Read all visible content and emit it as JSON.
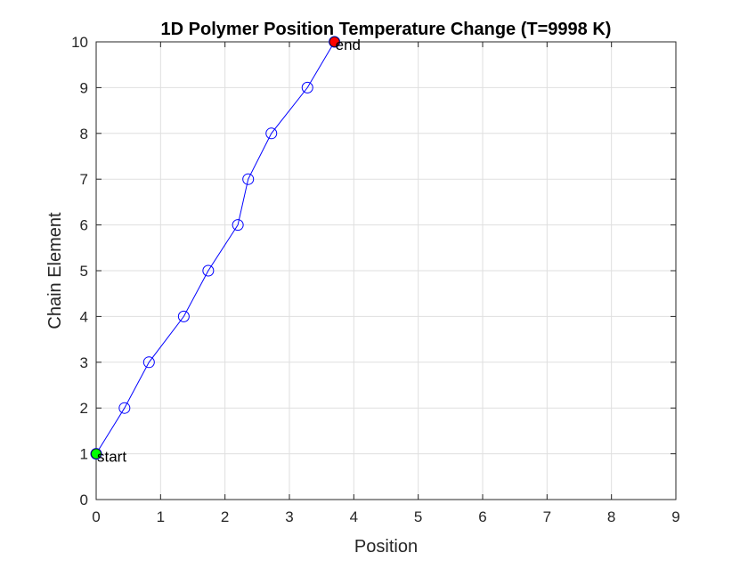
{
  "chart_data": {
    "type": "line",
    "title": "1D Polymer Position Temperature Change (T=9998 K)",
    "xlabel": "Position",
    "ylabel": "Chain Element",
    "xlim": [
      0,
      9
    ],
    "ylim": [
      0,
      10
    ],
    "xticks": [
      "0",
      "1",
      "2",
      "3",
      "4",
      "5",
      "6",
      "7",
      "8",
      "9"
    ],
    "yticks": [
      "0",
      "1",
      "2",
      "3",
      "4",
      "5",
      "6",
      "7",
      "8",
      "9",
      "10"
    ],
    "grid": true,
    "series": [
      {
        "marker": "circle-open",
        "color": "#0000ff",
        "points": [
          {
            "x": 0.0,
            "y": 1
          },
          {
            "x": 0.44,
            "y": 2
          },
          {
            "x": 0.82,
            "y": 3
          },
          {
            "x": 1.36,
            "y": 4
          },
          {
            "x": 1.74,
            "y": 5
          },
          {
            "x": 2.2,
            "y": 6
          },
          {
            "x": 2.36,
            "y": 7
          },
          {
            "x": 2.72,
            "y": 8
          },
          {
            "x": 3.28,
            "y": 9
          },
          {
            "x": 3.7,
            "y": 10
          }
        ]
      }
    ],
    "highlights": [
      {
        "label": "start",
        "x": 0.0,
        "y": 1,
        "color": "#00ff00"
      },
      {
        "label": "end",
        "x": 3.7,
        "y": 10,
        "color": "#ff0000"
      }
    ]
  }
}
